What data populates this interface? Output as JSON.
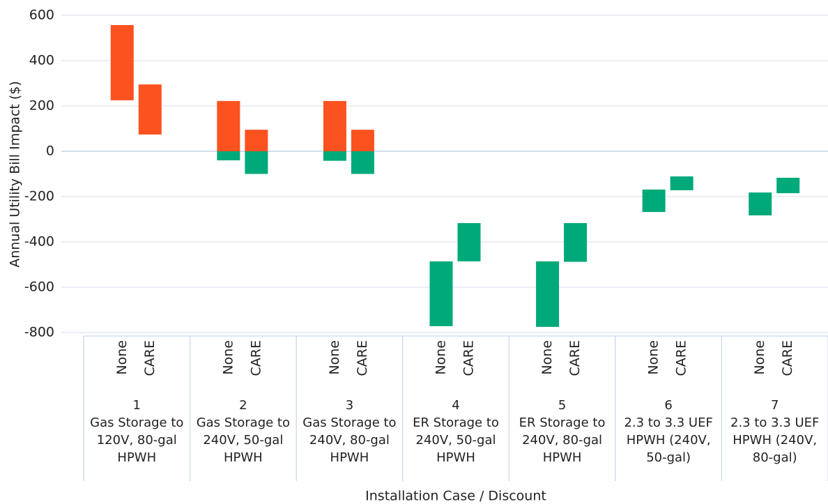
{
  "chart_data": {
    "type": "floating_bar",
    "ylabel": "Annual Utility Bill Impact ($)",
    "xlabel": "Installation Case / Discount",
    "categories": [
      "1",
      "2",
      "3",
      "4",
      "5",
      "6",
      "7"
    ],
    "category_names": [
      "Gas Storage to 120V, 80-gal HPWH",
      "Gas Storage to 240V, 50-gal HPWH",
      "Gas Storage to 240V, 80-gal HPWH",
      "ER Storage to 240V, 50-gal HPWH",
      "ER Storage to 240V, 80-gal HPWH",
      "2.3 to 3.3 UEF HPWH (240V, 50-gal)",
      "2.3 to 3.3 UEF HPWH (240V, 80-gal)"
    ],
    "subcategories": [
      "None",
      "CARE"
    ],
    "highs": [
      [
        557,
        295
      ],
      [
        222,
        95
      ],
      [
        222,
        95
      ],
      [
        -486,
        -317
      ],
      [
        -486,
        -317
      ],
      [
        -169,
        -111
      ],
      [
        -182,
        -117
      ]
    ],
    "lows": [
      [
        225,
        74
      ],
      [
        -40,
        -100
      ],
      [
        -42,
        -100
      ],
      [
        -772,
        -486
      ],
      [
        -775,
        -488
      ],
      [
        -268,
        -172
      ],
      [
        -283,
        -185
      ]
    ],
    "positive_color": "#fc5220",
    "negative_color": "#00a97a",
    "ylim": [
      -800,
      600
    ],
    "yticks": [
      -800,
      -600,
      -400,
      -200,
      0,
      200,
      400,
      600
    ],
    "grid": true
  }
}
